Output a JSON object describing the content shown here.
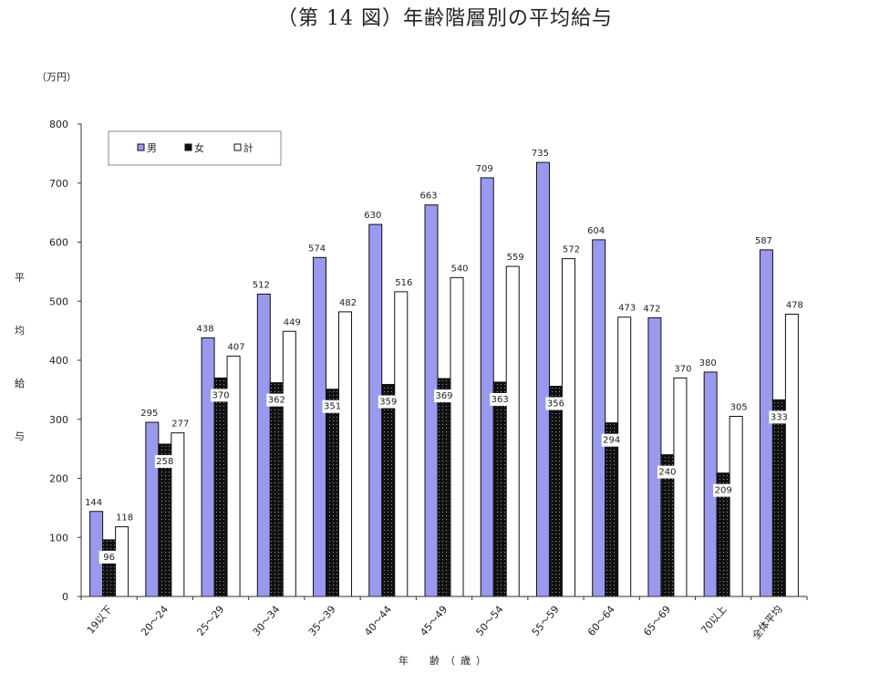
{
  "chart_data": {
    "type": "bar",
    "title": "（第 14 図）年齢階層別の平均給与",
    "unit": "（万円）",
    "ylabel_chars": [
      "平",
      "均",
      "給",
      "与"
    ],
    "xlabel": "年　齢（歳）",
    "ylim": [
      0,
      800
    ],
    "yticks": [
      0,
      100,
      200,
      300,
      400,
      500,
      600,
      700,
      800
    ],
    "grid": false,
    "legend_position": "top-left",
    "categories": [
      "19以下",
      "20～24",
      "25～29",
      "30～34",
      "35～39",
      "40～44",
      "45～49",
      "50～54",
      "55～59",
      "60～64",
      "65～69",
      "70以上",
      "全体平均"
    ],
    "series": [
      {
        "name": "男",
        "color": "#9999ee",
        "values": [
          144,
          295,
          438,
          512,
          574,
          630,
          663,
          709,
          735,
          604,
          472,
          380,
          587
        ]
      },
      {
        "name": "女",
        "color": "#111111",
        "values": [
          96,
          258,
          370,
          362,
          351,
          359,
          369,
          363,
          356,
          294,
          240,
          209,
          333
        ]
      },
      {
        "name": "計",
        "color": "#ffffff",
        "values": [
          118,
          277,
          407,
          449,
          482,
          516,
          540,
          559,
          572,
          473,
          370,
          305,
          478
        ]
      }
    ]
  }
}
